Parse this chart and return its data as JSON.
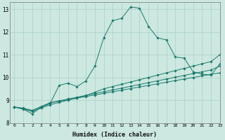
{
  "xlabel": "Humidex (Indice chaleur)",
  "bg_color": "#cce8e0",
  "grid_color": "#aacfc8",
  "line_color": "#1a7a6e",
  "xlim": [
    -0.5,
    23
  ],
  "ylim": [
    8,
    13.3
  ],
  "yticks": [
    8,
    9,
    10,
    11,
    12,
    13
  ],
  "xticks": [
    0,
    1,
    2,
    3,
    4,
    5,
    6,
    7,
    8,
    9,
    10,
    11,
    12,
    13,
    14,
    15,
    16,
    17,
    18,
    19,
    20,
    21,
    22,
    23
  ],
  "series_peaked_x": [
    0,
    1,
    2,
    3,
    4,
    5,
    6,
    7,
    8,
    9,
    10,
    11,
    12,
    13,
    14,
    15,
    16,
    17,
    18,
    19,
    20,
    21,
    22,
    23
  ],
  "series_peaked_y": [
    8.7,
    8.6,
    8.4,
    8.7,
    8.85,
    9.65,
    9.75,
    9.6,
    9.85,
    10.5,
    11.75,
    12.5,
    12.6,
    13.1,
    13.05,
    12.25,
    11.75,
    11.65,
    10.9,
    10.85,
    10.25,
    10.15,
    10.1,
    10.6
  ],
  "series_straight1_x": [
    0,
    1,
    2,
    3,
    4,
    5,
    6,
    7,
    8,
    9,
    10,
    11,
    12,
    13,
    14,
    15,
    16,
    17,
    18,
    19,
    20,
    21,
    22,
    23
  ],
  "series_straight1_y": [
    8.7,
    8.62,
    8.54,
    8.71,
    8.88,
    8.95,
    9.02,
    9.09,
    9.16,
    9.23,
    9.3,
    9.37,
    9.44,
    9.51,
    9.58,
    9.65,
    9.72,
    9.79,
    9.86,
    9.93,
    10.0,
    10.07,
    10.14,
    10.2
  ],
  "series_straight2_x": [
    0,
    1,
    2,
    3,
    4,
    5,
    6,
    7,
    8,
    9,
    10,
    11,
    12,
    13,
    14,
    15,
    16,
    17,
    18,
    19,
    20,
    21,
    22,
    23
  ],
  "series_straight2_y": [
    8.7,
    8.65,
    8.55,
    8.72,
    8.89,
    8.97,
    9.05,
    9.13,
    9.21,
    9.29,
    9.37,
    9.45,
    9.53,
    9.61,
    9.69,
    9.77,
    9.85,
    9.93,
    10.01,
    10.09,
    10.17,
    10.25,
    10.33,
    10.5
  ],
  "series_straight3_x": [
    0,
    1,
    2,
    3,
    4,
    5,
    6,
    7,
    8,
    9,
    10,
    11,
    12,
    13,
    14,
    15,
    16,
    17,
    18,
    19,
    20,
    21,
    22,
    23
  ],
  "series_straight3_y": [
    8.7,
    8.62,
    8.5,
    8.65,
    8.8,
    8.9,
    9.0,
    9.1,
    9.2,
    9.35,
    9.5,
    9.6,
    9.7,
    9.8,
    9.9,
    10.0,
    10.1,
    10.2,
    10.3,
    10.4,
    10.5,
    10.6,
    10.7,
    11.0
  ]
}
